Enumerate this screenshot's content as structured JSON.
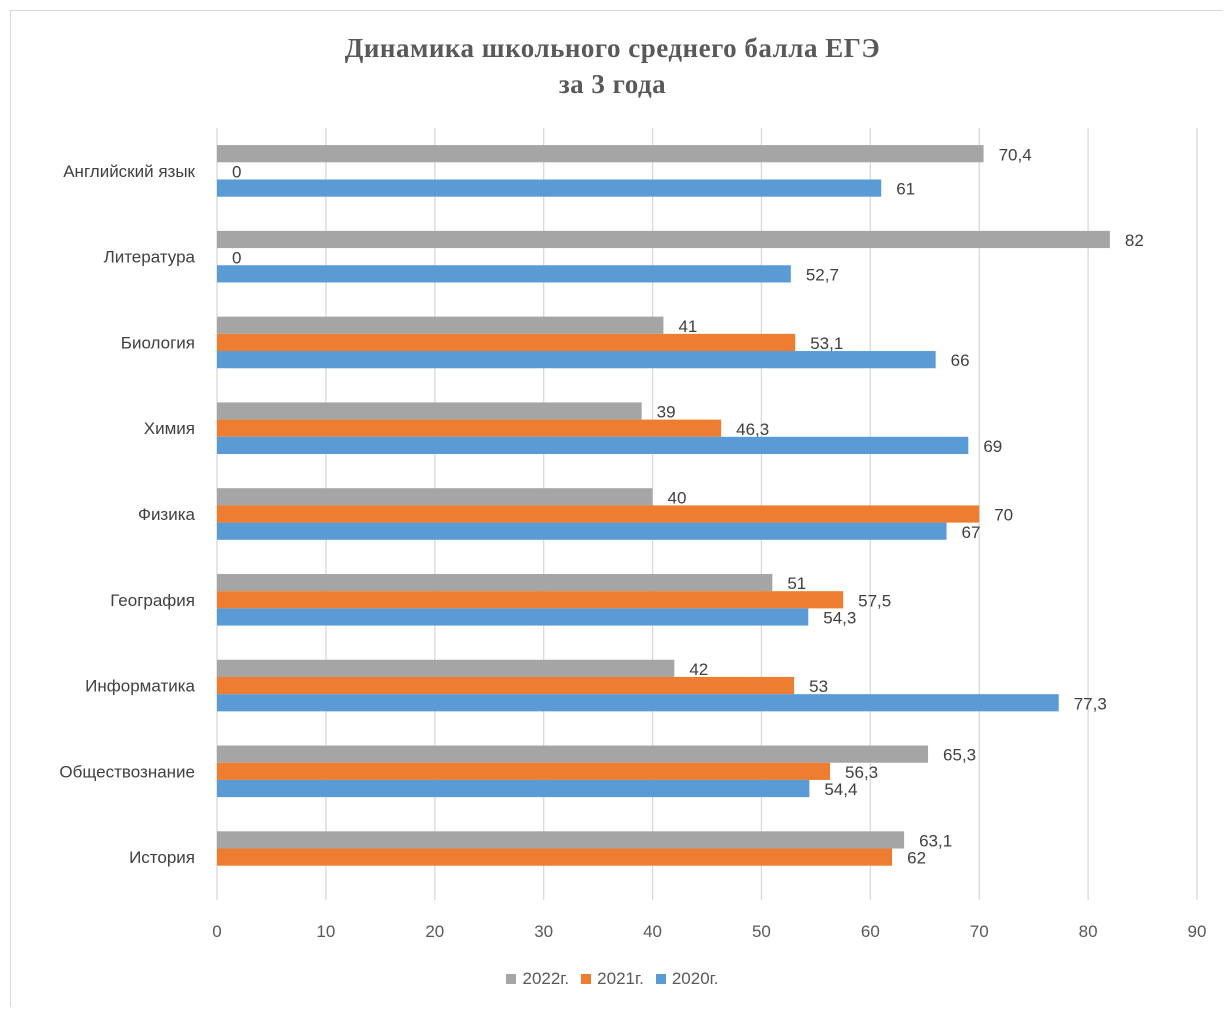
{
  "chart_data": {
    "type": "bar",
    "orientation": "horizontal",
    "title_lines": [
      "Динамика  школьного  среднего балла ЕГЭ",
      "за 3 года"
    ],
    "categories": [
      "Английский язык",
      "Литература",
      "Биология",
      "Химия",
      "Физика",
      "География",
      "Информатика",
      "Обществознание",
      "История"
    ],
    "series": [
      {
        "name": "2022г.",
        "color": "#a5a5a5",
        "values": [
          70.4,
          82,
          41,
          39,
          40,
          51,
          42,
          65.3,
          63.1
        ],
        "labels": [
          "70,4",
          "82",
          "41",
          "39",
          "40",
          "51",
          "42",
          "65,3",
          "63,1"
        ]
      },
      {
        "name": "2021г.",
        "color": "#ed7d31",
        "values": [
          0,
          0,
          53.1,
          46.3,
          70,
          57.5,
          53,
          56.3,
          62
        ],
        "labels": [
          "0",
          "0",
          "53,1",
          "46,3",
          "70",
          "57,5",
          "53",
          "56,3",
          "62"
        ]
      },
      {
        "name": "2020г.",
        "color": "#5b9bd5",
        "values": [
          61,
          52.7,
          66,
          69,
          67,
          54.3,
          77.3,
          54.4,
          null
        ],
        "labels": [
          "61",
          "52,7",
          "66",
          "69",
          "67",
          "54,3",
          "77,3",
          "54,4",
          null
        ]
      }
    ],
    "xlim": [
      0,
      90
    ],
    "xticks": [
      0,
      10,
      20,
      30,
      40,
      50,
      60,
      70,
      80,
      90
    ],
    "grid": true,
    "legend_position": "bottom"
  }
}
